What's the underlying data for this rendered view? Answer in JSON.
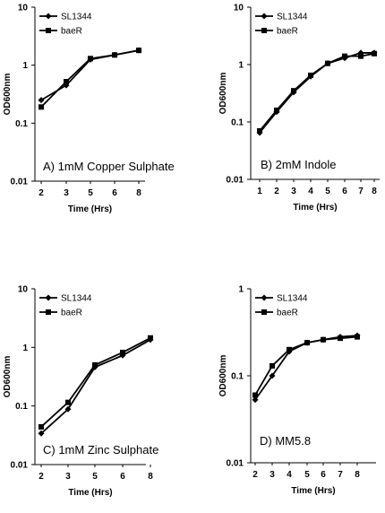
{
  "chart_data": [
    {
      "type": "line",
      "title": "A) 1mM Copper Sulphate",
      "xlabel": "Time (Hrs)",
      "ylabel": "OD600nm",
      "yscale": "log",
      "ylim": [
        0.01,
        10
      ],
      "yticks": [
        "0.01",
        "0.1",
        "1",
        "10"
      ],
      "x": [
        "2",
        "3",
        "5",
        "6",
        "8"
      ],
      "legend_position": "top-left",
      "grid": false,
      "series": [
        {
          "name": "SL1344",
          "marker": "diamond",
          "values": [
            0.25,
            0.45,
            1.25,
            1.5,
            1.8
          ]
        },
        {
          "name": "baeR",
          "marker": "square",
          "values": [
            0.19,
            0.52,
            1.3,
            1.5,
            1.8
          ]
        }
      ]
    },
    {
      "type": "line",
      "title": "B)  2mM Indole",
      "xlabel": "Time (Hrs)",
      "ylabel": "OD600nm",
      "yscale": "log",
      "ylim": [
        0.01,
        10
      ],
      "yticks": [
        "0.01",
        "0.1",
        "1",
        "10"
      ],
      "x": [
        "1",
        "2",
        "3",
        "4",
        "5",
        "6",
        "7",
        "8"
      ],
      "legend_position": "top-left",
      "grid": false,
      "series": [
        {
          "name": "SL1344",
          "marker": "diamond",
          "values": [
            0.065,
            0.15,
            0.33,
            0.62,
            1.05,
            1.3,
            1.6,
            1.6
          ]
        },
        {
          "name": "baeR",
          "marker": "square",
          "values": [
            0.07,
            0.16,
            0.35,
            0.65,
            1.05,
            1.4,
            1.4,
            1.55
          ]
        }
      ]
    },
    {
      "type": "line",
      "title": "C) 1mM Zinc Sulphate",
      "xlabel": "Time (Hrs)",
      "ylabel": "OD600nm",
      "yscale": "log",
      "ylim": [
        0.01,
        10
      ],
      "yticks": [
        "0.01",
        "0.1",
        "1",
        "10"
      ],
      "x": [
        "2",
        "3",
        "5",
        "6",
        "8"
      ],
      "legend_position": "top-left",
      "grid": false,
      "series": [
        {
          "name": "SL1344",
          "marker": "diamond",
          "values": [
            0.034,
            0.088,
            0.46,
            0.73,
            1.35
          ]
        },
        {
          "name": "baeR",
          "marker": "square",
          "values": [
            0.044,
            0.115,
            0.5,
            0.82,
            1.45
          ]
        }
      ]
    },
    {
      "type": "line",
      "title": "D) MM5.8",
      "xlabel": "Time (Hrs)",
      "ylabel": "OD600nm",
      "yscale": "log",
      "ylim": [
        0.01,
        1
      ],
      "yticks": [
        "0.01",
        "0.1",
        "1"
      ],
      "x": [
        "2",
        "3",
        "4",
        "5",
        "6",
        "7",
        "8"
      ],
      "legend_position": "top-left",
      "grid": false,
      "series": [
        {
          "name": "SL1344",
          "marker": "diamond",
          "values": [
            0.053,
            0.1,
            0.19,
            0.24,
            0.26,
            0.28,
            0.29
          ]
        },
        {
          "name": "baeR",
          "marker": "square",
          "values": [
            0.06,
            0.13,
            0.2,
            0.24,
            0.26,
            0.27,
            0.28
          ]
        }
      ]
    }
  ]
}
